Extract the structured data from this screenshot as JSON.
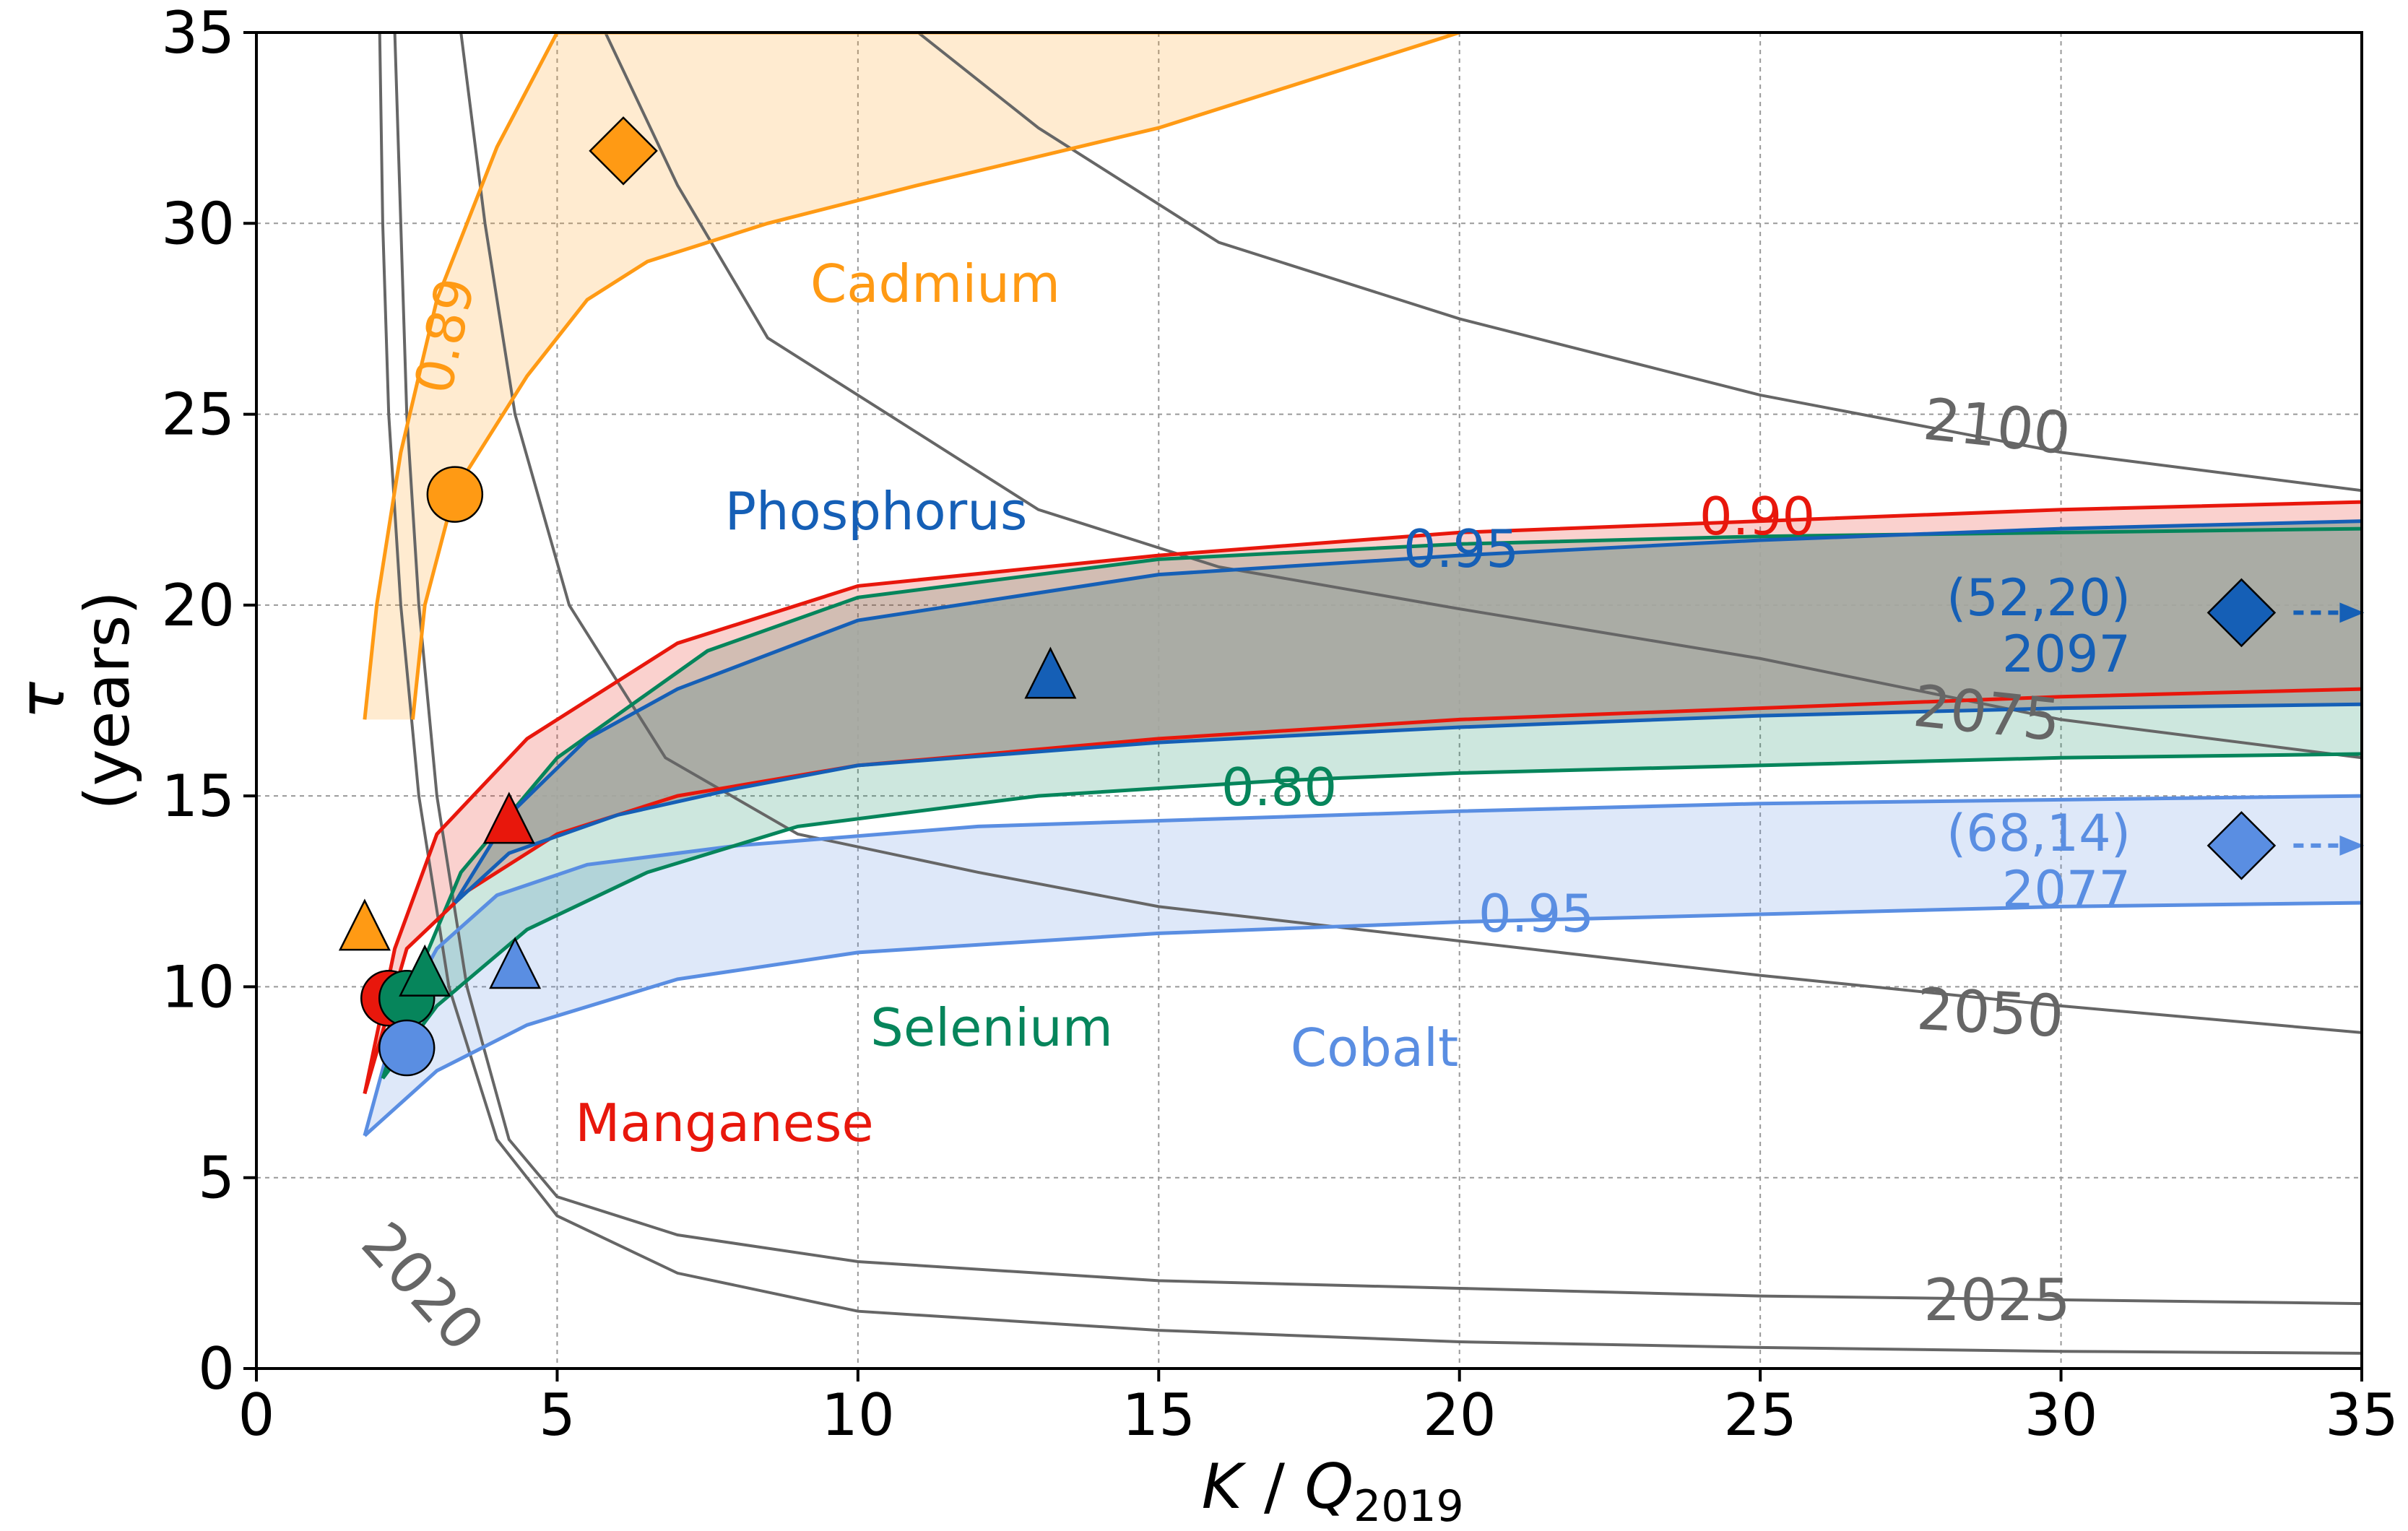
{
  "chart_data": {
    "type": "line",
    "xlabel": "K / Q",
    "xlabel_sub": "2019",
    "ylabel_symbol": "τ",
    "ylabel_unit": "(years)",
    "xlim": [
      0,
      35
    ],
    "ylim": [
      0,
      35
    ],
    "xticks": [
      0,
      5,
      10,
      15,
      20,
      25,
      30,
      35
    ],
    "yticks": [
      0,
      5,
      10,
      15,
      20,
      25,
      30,
      35
    ],
    "grid": true,
    "year_contours": [
      {
        "label": "2020",
        "points": [
          [
            2.05,
            35
          ],
          [
            2.1,
            30
          ],
          [
            2.2,
            25
          ],
          [
            2.4,
            20
          ],
          [
            2.7,
            15
          ],
          [
            3.2,
            10
          ],
          [
            4,
            6
          ],
          [
            5,
            4
          ],
          [
            7,
            2.5
          ],
          [
            10,
            1.5
          ],
          [
            15,
            1
          ],
          [
            20,
            0.7
          ],
          [
            25,
            0.55
          ],
          [
            30,
            0.45
          ],
          [
            35,
            0.4
          ]
        ]
      },
      {
        "label": "2025",
        "points": [
          [
            2.3,
            35
          ],
          [
            2.4,
            30
          ],
          [
            2.5,
            25
          ],
          [
            2.7,
            20
          ],
          [
            3,
            15
          ],
          [
            3.5,
            10
          ],
          [
            4.2,
            6
          ],
          [
            5,
            4.5
          ],
          [
            7,
            3.5
          ],
          [
            10,
            2.8
          ],
          [
            15,
            2.3
          ],
          [
            20,
            2.1
          ],
          [
            25,
            1.9
          ],
          [
            30,
            1.8
          ],
          [
            35,
            1.7
          ]
        ]
      },
      {
        "label": "2050",
        "points": [
          [
            3.4,
            35
          ],
          [
            3.8,
            30
          ],
          [
            4.3,
            25
          ],
          [
            5.2,
            20
          ],
          [
            6.8,
            16
          ],
          [
            9,
            14
          ],
          [
            12,
            13
          ],
          [
            15,
            12.1
          ],
          [
            20,
            11.2
          ],
          [
            25,
            10.3
          ],
          [
            30,
            9.5
          ],
          [
            35,
            8.8
          ]
        ]
      },
      {
        "label": "2075",
        "points": [
          [
            5.8,
            35
          ],
          [
            7,
            31
          ],
          [
            8.5,
            27
          ],
          [
            10.5,
            25
          ],
          [
            13,
            22.5
          ],
          [
            16,
            21
          ],
          [
            20,
            19.9
          ],
          [
            25,
            18.6
          ],
          [
            30,
            17
          ],
          [
            35,
            16
          ]
        ]
      },
      {
        "label": "2100",
        "points": [
          [
            11,
            35
          ],
          [
            13,
            32.5
          ],
          [
            16,
            29.5
          ],
          [
            20,
            27.5
          ],
          [
            25,
            25.5
          ],
          [
            30,
            24
          ],
          [
            35,
            23
          ]
        ]
      }
    ],
    "regions": [
      {
        "name": "Cadmium",
        "confidence": "0.89",
        "color": "#ff9a14",
        "upper": [
          [
            1.8,
            17
          ],
          [
            2,
            20
          ],
          [
            2.4,
            24
          ],
          [
            3,
            28
          ],
          [
            4,
            32
          ],
          [
            5,
            35
          ],
          [
            10,
            35
          ],
          [
            20,
            35
          ]
        ],
        "lower": [
          [
            2.6,
            17
          ],
          [
            2.8,
            20
          ],
          [
            3.3,
            23
          ],
          [
            4.5,
            26
          ],
          [
            5.5,
            28
          ],
          [
            6.5,
            29
          ],
          [
            8.5,
            30
          ],
          [
            11,
            31
          ],
          [
            15,
            32.5
          ],
          [
            20,
            35
          ]
        ]
      },
      {
        "name": "Manganese",
        "confidence": "0.90",
        "color": "#e8170c",
        "upper": [
          [
            1.8,
            7.2
          ],
          [
            2.3,
            11
          ],
          [
            3,
            14
          ],
          [
            4.5,
            16.5
          ],
          [
            7,
            19
          ],
          [
            10,
            20.5
          ],
          [
            15,
            21.3
          ],
          [
            20,
            21.9
          ],
          [
            25,
            22.2
          ],
          [
            30,
            22.5
          ],
          [
            35,
            22.7
          ]
        ],
        "lower": [
          [
            1.8,
            7.2
          ],
          [
            2.5,
            11
          ],
          [
            3.5,
            12.5
          ],
          [
            5,
            14
          ],
          [
            7,
            15
          ],
          [
            10,
            15.8
          ],
          [
            15,
            16.5
          ],
          [
            20,
            17
          ],
          [
            25,
            17.3
          ],
          [
            30,
            17.6
          ],
          [
            35,
            17.8
          ]
        ]
      },
      {
        "name": "Selenium",
        "confidence": "0.80",
        "color": "#06855b",
        "upper": [
          [
            2.1,
            7.6
          ],
          [
            2.6,
            10
          ],
          [
            3.4,
            13
          ],
          [
            5,
            16
          ],
          [
            7.5,
            18.8
          ],
          [
            10,
            20.2
          ],
          [
            15,
            21.2
          ],
          [
            20,
            21.6
          ],
          [
            25,
            21.8
          ],
          [
            30,
            21.9
          ],
          [
            35,
            22
          ]
        ],
        "lower": [
          [
            2.1,
            7.6
          ],
          [
            3,
            9.5
          ],
          [
            4.5,
            11.5
          ],
          [
            6.5,
            13
          ],
          [
            9,
            14.2
          ],
          [
            13,
            15
          ],
          [
            17,
            15.4
          ],
          [
            20,
            15.6
          ],
          [
            25,
            15.8
          ],
          [
            30,
            16
          ],
          [
            35,
            16.1
          ]
        ]
      },
      {
        "name": "Phosphorus",
        "confidence": "0.95",
        "color": "#155fb6",
        "upper": [
          [
            3.3,
            12.2
          ],
          [
            4.2,
            14.5
          ],
          [
            5.5,
            16.5
          ],
          [
            7,
            17.8
          ],
          [
            10,
            19.6
          ],
          [
            15,
            20.8
          ],
          [
            20,
            21.3
          ],
          [
            25,
            21.7
          ],
          [
            30,
            22
          ],
          [
            35,
            22.2
          ]
        ],
        "lower": [
          [
            3.3,
            12.2
          ],
          [
            4.2,
            13.5
          ],
          [
            6,
            14.5
          ],
          [
            8,
            15.2
          ],
          [
            10,
            15.8
          ],
          [
            15,
            16.4
          ],
          [
            20,
            16.8
          ],
          [
            25,
            17.1
          ],
          [
            30,
            17.3
          ],
          [
            35,
            17.4
          ]
        ]
      },
      {
        "name": "Cobalt",
        "confidence": "0.95",
        "color": "#5a8ee2",
        "upper": [
          [
            1.8,
            6.1
          ],
          [
            2.3,
            9
          ],
          [
            3,
            11
          ],
          [
            4,
            12.4
          ],
          [
            5.5,
            13.2
          ],
          [
            8,
            13.7
          ],
          [
            12,
            14.2
          ],
          [
            20,
            14.6
          ],
          [
            25,
            14.8
          ],
          [
            30,
            14.9
          ],
          [
            35,
            15
          ]
        ],
        "lower": [
          [
            1.8,
            6.1
          ],
          [
            3,
            7.8
          ],
          [
            4.5,
            9
          ],
          [
            7,
            10.2
          ],
          [
            10,
            10.9
          ],
          [
            15,
            11.4
          ],
          [
            20,
            11.7
          ],
          [
            25,
            11.9
          ],
          [
            30,
            12.1
          ],
          [
            35,
            12.2
          ]
        ]
      }
    ],
    "markers": [
      {
        "element": "Cadmium",
        "shape": "circle",
        "x": 3.3,
        "y": 22.9,
        "color": "#ff9a14"
      },
      {
        "element": "Cadmium",
        "shape": "diamond",
        "x": 6.1,
        "y": 31.9,
        "color": "#ff9a14"
      },
      {
        "element": "Cadmium",
        "shape": "triangle",
        "x": 1.8,
        "y": 11.5,
        "color": "#ff9a14"
      },
      {
        "element": "Manganese",
        "shape": "circle",
        "x": 2.2,
        "y": 9.7,
        "color": "#e8170c"
      },
      {
        "element": "Manganese",
        "shape": "triangle",
        "x": 4.2,
        "y": 14.3,
        "color": "#e8170c"
      },
      {
        "element": "Selenium",
        "shape": "circle",
        "x": 2.5,
        "y": 9.7,
        "color": "#06855b"
      },
      {
        "element": "Selenium",
        "shape": "triangle",
        "x": 2.8,
        "y": 10.3,
        "color": "#06855b"
      },
      {
        "element": "Phosphorus",
        "shape": "triangle",
        "x": 13.2,
        "y": 18.1,
        "color": "#155fb6"
      },
      {
        "element": "Phosphorus",
        "shape": "diamond",
        "x": 33,
        "y": 19.8,
        "color": "#155fb6"
      },
      {
        "element": "Cobalt",
        "shape": "circle",
        "x": 2.5,
        "y": 8.4,
        "color": "#5a8ee2"
      },
      {
        "element": "Cobalt",
        "shape": "triangle",
        "x": 4.3,
        "y": 10.5,
        "color": "#5a8ee2"
      },
      {
        "element": "Cobalt",
        "shape": "diamond",
        "x": 33,
        "y": 13.7,
        "color": "#5a8ee2"
      }
    ],
    "offscale_notes": [
      {
        "element": "Phosphorus",
        "coords": "(52,20)",
        "year": "2097",
        "color": "#155fb6"
      },
      {
        "element": "Cobalt",
        "coords": "(68,14)",
        "year": "2077",
        "color": "#5a8ee2"
      }
    ]
  },
  "contour_gray": "#666666",
  "fill_overlap": "#a5aaa3"
}
